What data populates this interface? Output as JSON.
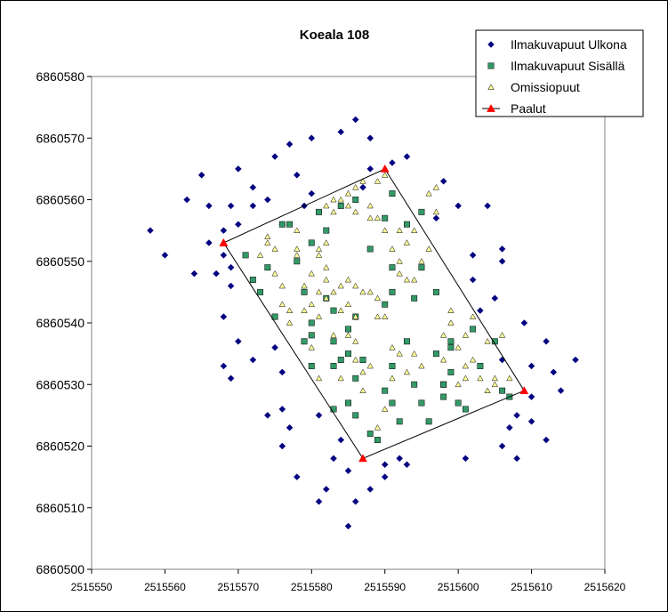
{
  "chart_data": {
    "type": "scatter",
    "title": "Koeala 108",
    "xlabel": "",
    "ylabel": "",
    "xlim": [
      2515550,
      2515620
    ],
    "ylim": [
      6860500,
      6860580
    ],
    "xticks": [
      2515550,
      2515560,
      2515570,
      2515580,
      2515590,
      2515600,
      2515610,
      2515620
    ],
    "yticks": [
      6860500,
      6860510,
      6860520,
      6860530,
      6860540,
      6860550,
      6860560,
      6860570,
      6860580
    ],
    "grid": false,
    "legend_position": "top-right",
    "series": [
      {
        "name": "Ilmakuvapuut Ulkona",
        "marker": "diamond",
        "color": "#000080",
        "points": [
          [
            2515558,
            6860555
          ],
          [
            2515560,
            6860551
          ],
          [
            2515563,
            6860560
          ],
          [
            2515564,
            6860548
          ],
          [
            2515565,
            6860564
          ],
          [
            2515566,
            6860559
          ],
          [
            2515566,
            6860553
          ],
          [
            2515567,
            6860548
          ],
          [
            2515568,
            6860555
          ],
          [
            2515568,
            6860551
          ],
          [
            2515568,
            6860541
          ],
          [
            2515568,
            6860533
          ],
          [
            2515569,
            6860531
          ],
          [
            2515569,
            6860546
          ],
          [
            2515569,
            6860549
          ],
          [
            2515569,
            6860559
          ],
          [
            2515570,
            6860565
          ],
          [
            2515570,
            6860556
          ],
          [
            2515570,
            6860537
          ],
          [
            2515572,
            6860562
          ],
          [
            2515572,
            6860534
          ],
          [
            2515572,
            6860559
          ],
          [
            2515574,
            6860525
          ],
          [
            2515574,
            6860560
          ],
          [
            2515575,
            6860567
          ],
          [
            2515575,
            6860536
          ],
          [
            2515576,
            6860526
          ],
          [
            2515576,
            6860532
          ],
          [
            2515576,
            6860520
          ],
          [
            2515576,
            6860556
          ],
          [
            2515577,
            6860569
          ],
          [
            2515577,
            6860523
          ],
          [
            2515578,
            6860515
          ],
          [
            2515578,
            6860564
          ],
          [
            2515579,
            6860559
          ],
          [
            2515580,
            6860570
          ],
          [
            2515580,
            6860561
          ],
          [
            2515581,
            6860525
          ],
          [
            2515581,
            6860511
          ],
          [
            2515582,
            6860513
          ],
          [
            2515583,
            6860518
          ],
          [
            2515584,
            6860571
          ],
          [
            2515584,
            6860521
          ],
          [
            2515585,
            6860507
          ],
          [
            2515585,
            6860516
          ],
          [
            2515586,
            6860573
          ],
          [
            2515586,
            6860511
          ],
          [
            2515587,
            6860562
          ],
          [
            2515588,
            6860565
          ],
          [
            2515588,
            6860570
          ],
          [
            2515588,
            6860513
          ],
          [
            2515590,
            6860517
          ],
          [
            2515590,
            6860515
          ],
          [
            2515591,
            6860566
          ],
          [
            2515592,
            6860518
          ],
          [
            2515593,
            6860567
          ],
          [
            2515593,
            6860517
          ],
          [
            2515597,
            6860557
          ],
          [
            2515598,
            6860563
          ],
          [
            2515600,
            6860559
          ],
          [
            2515601,
            6860518
          ],
          [
            2515602,
            6860551
          ],
          [
            2515602,
            6860547
          ],
          [
            2515603,
            6860542
          ],
          [
            2515604,
            6860559
          ],
          [
            2515605,
            6860544
          ],
          [
            2515606,
            6860534
          ],
          [
            2515606,
            6860550
          ],
          [
            2515606,
            6860552
          ],
          [
            2515606,
            6860520
          ],
          [
            2515607,
            6860523
          ],
          [
            2515608,
            6860525
          ],
          [
            2515608,
            6860518
          ],
          [
            2515609,
            6860540
          ],
          [
            2515610,
            6860533
          ],
          [
            2515610,
            6860528
          ],
          [
            2515610,
            6860524
          ],
          [
            2515612,
            6860537
          ],
          [
            2515612,
            6860521
          ],
          [
            2515613,
            6860532
          ],
          [
            2515614,
            6860529
          ],
          [
            2515616,
            6860534
          ]
        ]
      },
      {
        "name": "Ilmakuvapuut Sisällä",
        "marker": "square",
        "color": "#339966",
        "points": [
          [
            2515571,
            6860551
          ],
          [
            2515572,
            6860547
          ],
          [
            2515573,
            6860545
          ],
          [
            2515574,
            6860549
          ],
          [
            2515575,
            6860541
          ],
          [
            2515576,
            6860556
          ],
          [
            2515577,
            6860556
          ],
          [
            2515578,
            6860550
          ],
          [
            2515579,
            6860545
          ],
          [
            2515579,
            6860537
          ],
          [
            2515580,
            6860538
          ],
          [
            2515580,
            6860540
          ],
          [
            2515580,
            6860553
          ],
          [
            2515580,
            6860533
          ],
          [
            2515581,
            6860558
          ],
          [
            2515582,
            6860555
          ],
          [
            2515582,
            6860544
          ],
          [
            2515583,
            6860542
          ],
          [
            2515583,
            6860537
          ],
          [
            2515583,
            6860533
          ],
          [
            2515583,
            6860526
          ],
          [
            2515584,
            6860559
          ],
          [
            2515584,
            6860534
          ],
          [
            2515585,
            6860539
          ],
          [
            2515585,
            6860527
          ],
          [
            2515585,
            6860535
          ],
          [
            2515586,
            6860541
          ],
          [
            2515586,
            6860531
          ],
          [
            2515586,
            6860525
          ],
          [
            2515586,
            6860560
          ],
          [
            2515587,
            6860534
          ],
          [
            2515588,
            6860552
          ],
          [
            2515588,
            6860522
          ],
          [
            2515589,
            6860521
          ],
          [
            2515590,
            6860557
          ],
          [
            2515590,
            6860543
          ],
          [
            2515590,
            6860529
          ],
          [
            2515591,
            6860549
          ],
          [
            2515591,
            6860545
          ],
          [
            2515591,
            6860533
          ],
          [
            2515591,
            6860527
          ],
          [
            2515591,
            6860561
          ],
          [
            2515592,
            6860524
          ],
          [
            2515593,
            6860537
          ],
          [
            2515593,
            6860556
          ],
          [
            2515594,
            6860530
          ],
          [
            2515594,
            6860544
          ],
          [
            2515595,
            6860527
          ],
          [
            2515595,
            6860558
          ],
          [
            2515595,
            6860549
          ],
          [
            2515596,
            6860524
          ],
          [
            2515597,
            6860535
          ],
          [
            2515597,
            6860545
          ],
          [
            2515598,
            6860530
          ],
          [
            2515598,
            6860530
          ],
          [
            2515598,
            6860528
          ],
          [
            2515599,
            6860537
          ],
          [
            2515599,
            6860536
          ],
          [
            2515599,
            6860532
          ],
          [
            2515600,
            6860527
          ],
          [
            2515601,
            6860526
          ],
          [
            2515602,
            6860539
          ],
          [
            2515603,
            6860533
          ],
          [
            2515605,
            6860537
          ],
          [
            2515606,
            6860529
          ],
          [
            2515607,
            6860528
          ]
        ]
      },
      {
        "name": "Omissiopuut",
        "marker": "triangle",
        "color": "#FFFF99",
        "points": [
          [
            2515573,
            6860551
          ],
          [
            2515574,
            6860554
          ],
          [
            2515574,
            6860553
          ],
          [
            2515575,
            6860552
          ],
          [
            2515575,
            6860548
          ],
          [
            2515576,
            6860546
          ],
          [
            2515576,
            6860543
          ],
          [
            2515577,
            6860542
          ],
          [
            2515577,
            6860540
          ],
          [
            2515578,
            6860555
          ],
          [
            2515578,
            6860552
          ],
          [
            2515578,
            6860551
          ],
          [
            2515579,
            6860546
          ],
          [
            2515579,
            6860542
          ],
          [
            2515580,
            6860548
          ],
          [
            2515580,
            6860543
          ],
          [
            2515580,
            6860536
          ],
          [
            2515581,
            6860552
          ],
          [
            2515581,
            6860551
          ],
          [
            2515581,
            6860545
          ],
          [
            2515581,
            6860541
          ],
          [
            2515581,
            6860531
          ],
          [
            2515582,
            6860559
          ],
          [
            2515582,
            6860553
          ],
          [
            2515582,
            6860549
          ],
          [
            2515582,
            6860547
          ],
          [
            2515582,
            6860544
          ],
          [
            2515583,
            6860560
          ],
          [
            2515583,
            6860558
          ],
          [
            2515583,
            6860545
          ],
          [
            2515583,
            6860538
          ],
          [
            2515584,
            6860560
          ],
          [
            2515584,
            6860546
          ],
          [
            2515584,
            6860542
          ],
          [
            2515584,
            6860531
          ],
          [
            2515585,
            6860561
          ],
          [
            2515585,
            6860559
          ],
          [
            2515585,
            6860547
          ],
          [
            2515585,
            6860543
          ],
          [
            2515585,
            6860538
          ],
          [
            2515586,
            6860562
          ],
          [
            2515586,
            6860558
          ],
          [
            2515586,
            6860546
          ],
          [
            2515586,
            6860541
          ],
          [
            2515586,
            6860537
          ],
          [
            2515586,
            6860534
          ],
          [
            2515587,
            6860563
          ],
          [
            2515587,
            6860545
          ],
          [
            2515587,
            6860532
          ],
          [
            2515587,
            6860529
          ],
          [
            2515588,
            6860559
          ],
          [
            2515588,
            6860557
          ],
          [
            2515588,
            6860545
          ],
          [
            2515588,
            6860533
          ],
          [
            2515589,
            6860563
          ],
          [
            2515589,
            6860557
          ],
          [
            2515589,
            6860544
          ],
          [
            2515589,
            6860541
          ],
          [
            2515589,
            6860523
          ],
          [
            2515590,
            6860564
          ],
          [
            2515590,
            6860555
          ],
          [
            2515590,
            6860541
          ],
          [
            2515590,
            6860526
          ],
          [
            2515591,
            6860552
          ],
          [
            2515591,
            6860536
          ],
          [
            2515591,
            6860531
          ],
          [
            2515592,
            6860555
          ],
          [
            2515592,
            6860550
          ],
          [
            2515592,
            6860548
          ],
          [
            2515592,
            6860535
          ],
          [
            2515593,
            6860553
          ],
          [
            2515593,
            6860547
          ],
          [
            2515593,
            6860532
          ],
          [
            2515594,
            6860555
          ],
          [
            2515594,
            6860547
          ],
          [
            2515594,
            6860535
          ],
          [
            2515595,
            6860550
          ],
          [
            2515595,
            6860533
          ],
          [
            2515596,
            6860561
          ],
          [
            2515596,
            6860552
          ],
          [
            2515597,
            6860562
          ],
          [
            2515597,
            6860558
          ],
          [
            2515598,
            6860538
          ],
          [
            2515598,
            6860534
          ],
          [
            2515599,
            6860542
          ],
          [
            2515599,
            6860540
          ],
          [
            2515600,
            6860536
          ],
          [
            2515600,
            6860530
          ],
          [
            2515601,
            6860538
          ],
          [
            2515601,
            6860533
          ],
          [
            2515601,
            6860531
          ],
          [
            2515602,
            6860534
          ],
          [
            2515602,
            6860541
          ],
          [
            2515603,
            6860531
          ],
          [
            2515604,
            6860537
          ],
          [
            2515604,
            6860529
          ],
          [
            2515605,
            6860531
          ],
          [
            2515605,
            6860530
          ],
          [
            2515606,
            6860538
          ],
          [
            2515607,
            6860531
          ]
        ]
      },
      {
        "name": "Paalut",
        "marker": "triangle",
        "color": "#FF0000",
        "line": true,
        "points": [
          [
            2515568,
            6860553
          ],
          [
            2515590,
            6860565
          ],
          [
            2515609,
            6860529
          ],
          [
            2515587,
            6860518
          ],
          [
            2515568,
            6860553
          ]
        ]
      }
    ]
  }
}
